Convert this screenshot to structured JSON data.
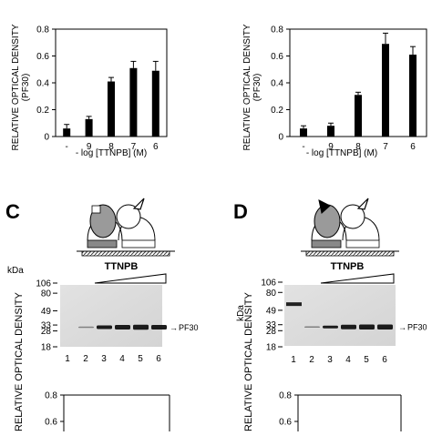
{
  "panel_letters": {
    "c": "C",
    "d": "D"
  },
  "chart_data": [
    {
      "type": "bar",
      "ylabel": "RELATIVE OPTICAL DENSITY\n(PF30)",
      "xlabel": "- log [TTNPB] (M)",
      "categories": [
        "-",
        "9",
        "8",
        "7",
        "6"
      ],
      "values": [
        0.06,
        0.13,
        0.41,
        0.51,
        0.49
      ],
      "errors": [
        0.03,
        0.02,
        0.03,
        0.05,
        0.07
      ],
      "ylim": [
        0,
        0.8
      ],
      "yticks": [
        "0",
        "0.2",
        "0.4",
        "0.6",
        "0.8"
      ]
    },
    {
      "type": "bar",
      "ylabel": "RELATIVE OPTICAL DENSITY\n(PF30)",
      "xlabel": "- log [TTNPB] (M)",
      "categories": [
        "-",
        "9",
        "8",
        "7",
        "6"
      ],
      "values": [
        0.06,
        0.08,
        0.31,
        0.69,
        0.61
      ],
      "errors": [
        0.02,
        0.02,
        0.02,
        0.08,
        0.06
      ],
      "ylim": [
        0,
        0.8
      ],
      "yticks": [
        "0",
        "0.2",
        "0.4",
        "0.6",
        "0.8"
      ]
    },
    {
      "type": "bar",
      "ylabel": "RELATIVE OPTICAL DENSITY",
      "yticks": [
        "0.8",
        "0.6"
      ]
    },
    {
      "type": "bar",
      "ylabel": "RELATIVE OPTICAL DENSITY",
      "yticks": [
        "0.8",
        "0.6"
      ]
    }
  ],
  "blot_c": {
    "treatment": "TTNPB",
    "unit": "kDa",
    "markers": [
      "106",
      "80",
      "49",
      "33",
      "28",
      "18"
    ],
    "band_label": "PF30",
    "lanes": [
      "1",
      "2",
      "3",
      "4",
      "5",
      "6"
    ]
  },
  "blot_d": {
    "treatment": "TTNPB",
    "unit": "kDa",
    "markers": [
      "106",
      "80",
      "49",
      "33",
      "28",
      "18"
    ],
    "band_label": "PF30",
    "lanes": [
      "1",
      "2",
      "3",
      "4",
      "5",
      "6"
    ]
  }
}
